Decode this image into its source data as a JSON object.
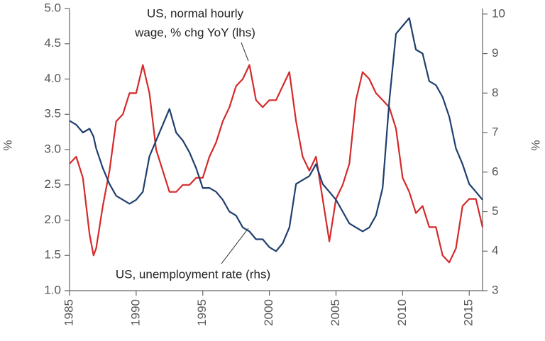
{
  "chart_data": {
    "type": "line",
    "ylabel": "%",
    "y2label": "%",
    "annotations": [
      [
        "US, normal hourly",
        "wage, % chg YoY (lhs)"
      ],
      [
        "US, unemployment rate (rhs)"
      ]
    ],
    "x": [
      1985,
      1985.5,
      1986,
      1986.5,
      1986.8,
      1987,
      1987.5,
      1988,
      1988.5,
      1989,
      1989.5,
      1990,
      1990.5,
      1991,
      1991.5,
      1992,
      1992.5,
      1993,
      1993.5,
      1994,
      1994.5,
      1995,
      1995.5,
      1996,
      1996.5,
      1997,
      1997.5,
      1998,
      1998.5,
      1999,
      1999.5,
      2000,
      2000.5,
      2001,
      2001.5,
      2002,
      2002.5,
      2003,
      2003.5,
      2004,
      2004.5,
      2005,
      2005.5,
      2006,
      2006.5,
      2007,
      2007.5,
      2008,
      2008.5,
      2009,
      2009.5,
      2010,
      2010.5,
      2011,
      2011.5,
      2012,
      2012.5,
      2013,
      2013.5,
      2014,
      2014.5,
      2015,
      2015.5,
      2016
    ],
    "series": [
      {
        "name": "US, normal hourly wage, % chg YoY (lhs)",
        "color": "#d42a2a",
        "values": [
          2.8,
          2.9,
          2.6,
          1.8,
          1.5,
          1.6,
          2.2,
          2.7,
          3.4,
          3.5,
          3.8,
          3.8,
          4.2,
          3.8,
          3.0,
          2.7,
          2.4,
          2.4,
          2.5,
          2.5,
          2.6,
          2.6,
          2.9,
          3.1,
          3.4,
          3.6,
          3.9,
          4.0,
          4.2,
          3.7,
          3.6,
          3.7,
          3.7,
          3.9,
          4.1,
          3.4,
          2.9,
          2.7,
          2.9,
          2.3,
          1.7,
          2.3,
          2.5,
          2.8,
          3.7,
          4.1,
          4.0,
          3.8,
          3.7,
          3.6,
          3.3,
          2.6,
          2.4,
          2.1,
          2.2,
          1.9,
          1.9,
          1.5,
          1.4,
          1.6,
          2.2,
          2.3,
          2.3,
          1.9
        ]
      },
      {
        "name": "US, unemployment rate (rhs)",
        "color": "#1f3f6e",
        "axis": "y2",
        "values": [
          7.3,
          7.2,
          7.0,
          7.1,
          6.9,
          6.6,
          6.1,
          5.7,
          5.4,
          5.3,
          5.2,
          5.3,
          5.5,
          6.4,
          6.8,
          7.2,
          7.6,
          7.0,
          6.8,
          6.5,
          6.1,
          5.6,
          5.6,
          5.5,
          5.3,
          5.0,
          4.9,
          4.6,
          4.5,
          4.3,
          4.3,
          4.1,
          4.0,
          4.2,
          4.6,
          5.7,
          5.8,
          5.9,
          6.2,
          5.7,
          5.5,
          5.3,
          5.0,
          4.7,
          4.6,
          4.5,
          4.6,
          4.9,
          5.6,
          7.8,
          9.5,
          9.7,
          9.9,
          9.1,
          9.0,
          8.3,
          8.2,
          7.9,
          7.4,
          6.6,
          6.2,
          5.7,
          5.5,
          5.3
        ]
      }
    ],
    "xlim": [
      1985,
      2016
    ],
    "xticks": [
      1985,
      1990,
      1995,
      2000,
      2005,
      2010,
      2015
    ],
    "ylim": [
      1,
      5
    ],
    "yticks": [
      {
        "value": 1,
        "label": "1.0"
      },
      {
        "value": 1.5,
        "label": "1.5"
      },
      {
        "value": 2,
        "label": "2.0"
      },
      {
        "value": 2.5,
        "label": "2.5"
      },
      {
        "value": 3,
        "label": "3.0"
      },
      {
        "value": 3.5,
        "label": "3.5"
      },
      {
        "value": 4,
        "label": "4.0"
      },
      {
        "value": 4.5,
        "label": "4.5"
      },
      {
        "value": 5,
        "label": "5.0"
      }
    ],
    "y2lim": [
      3,
      10.14
    ],
    "y2ticks": [
      3,
      4,
      5,
      6,
      7,
      8,
      9,
      10
    ],
    "grid": false
  }
}
